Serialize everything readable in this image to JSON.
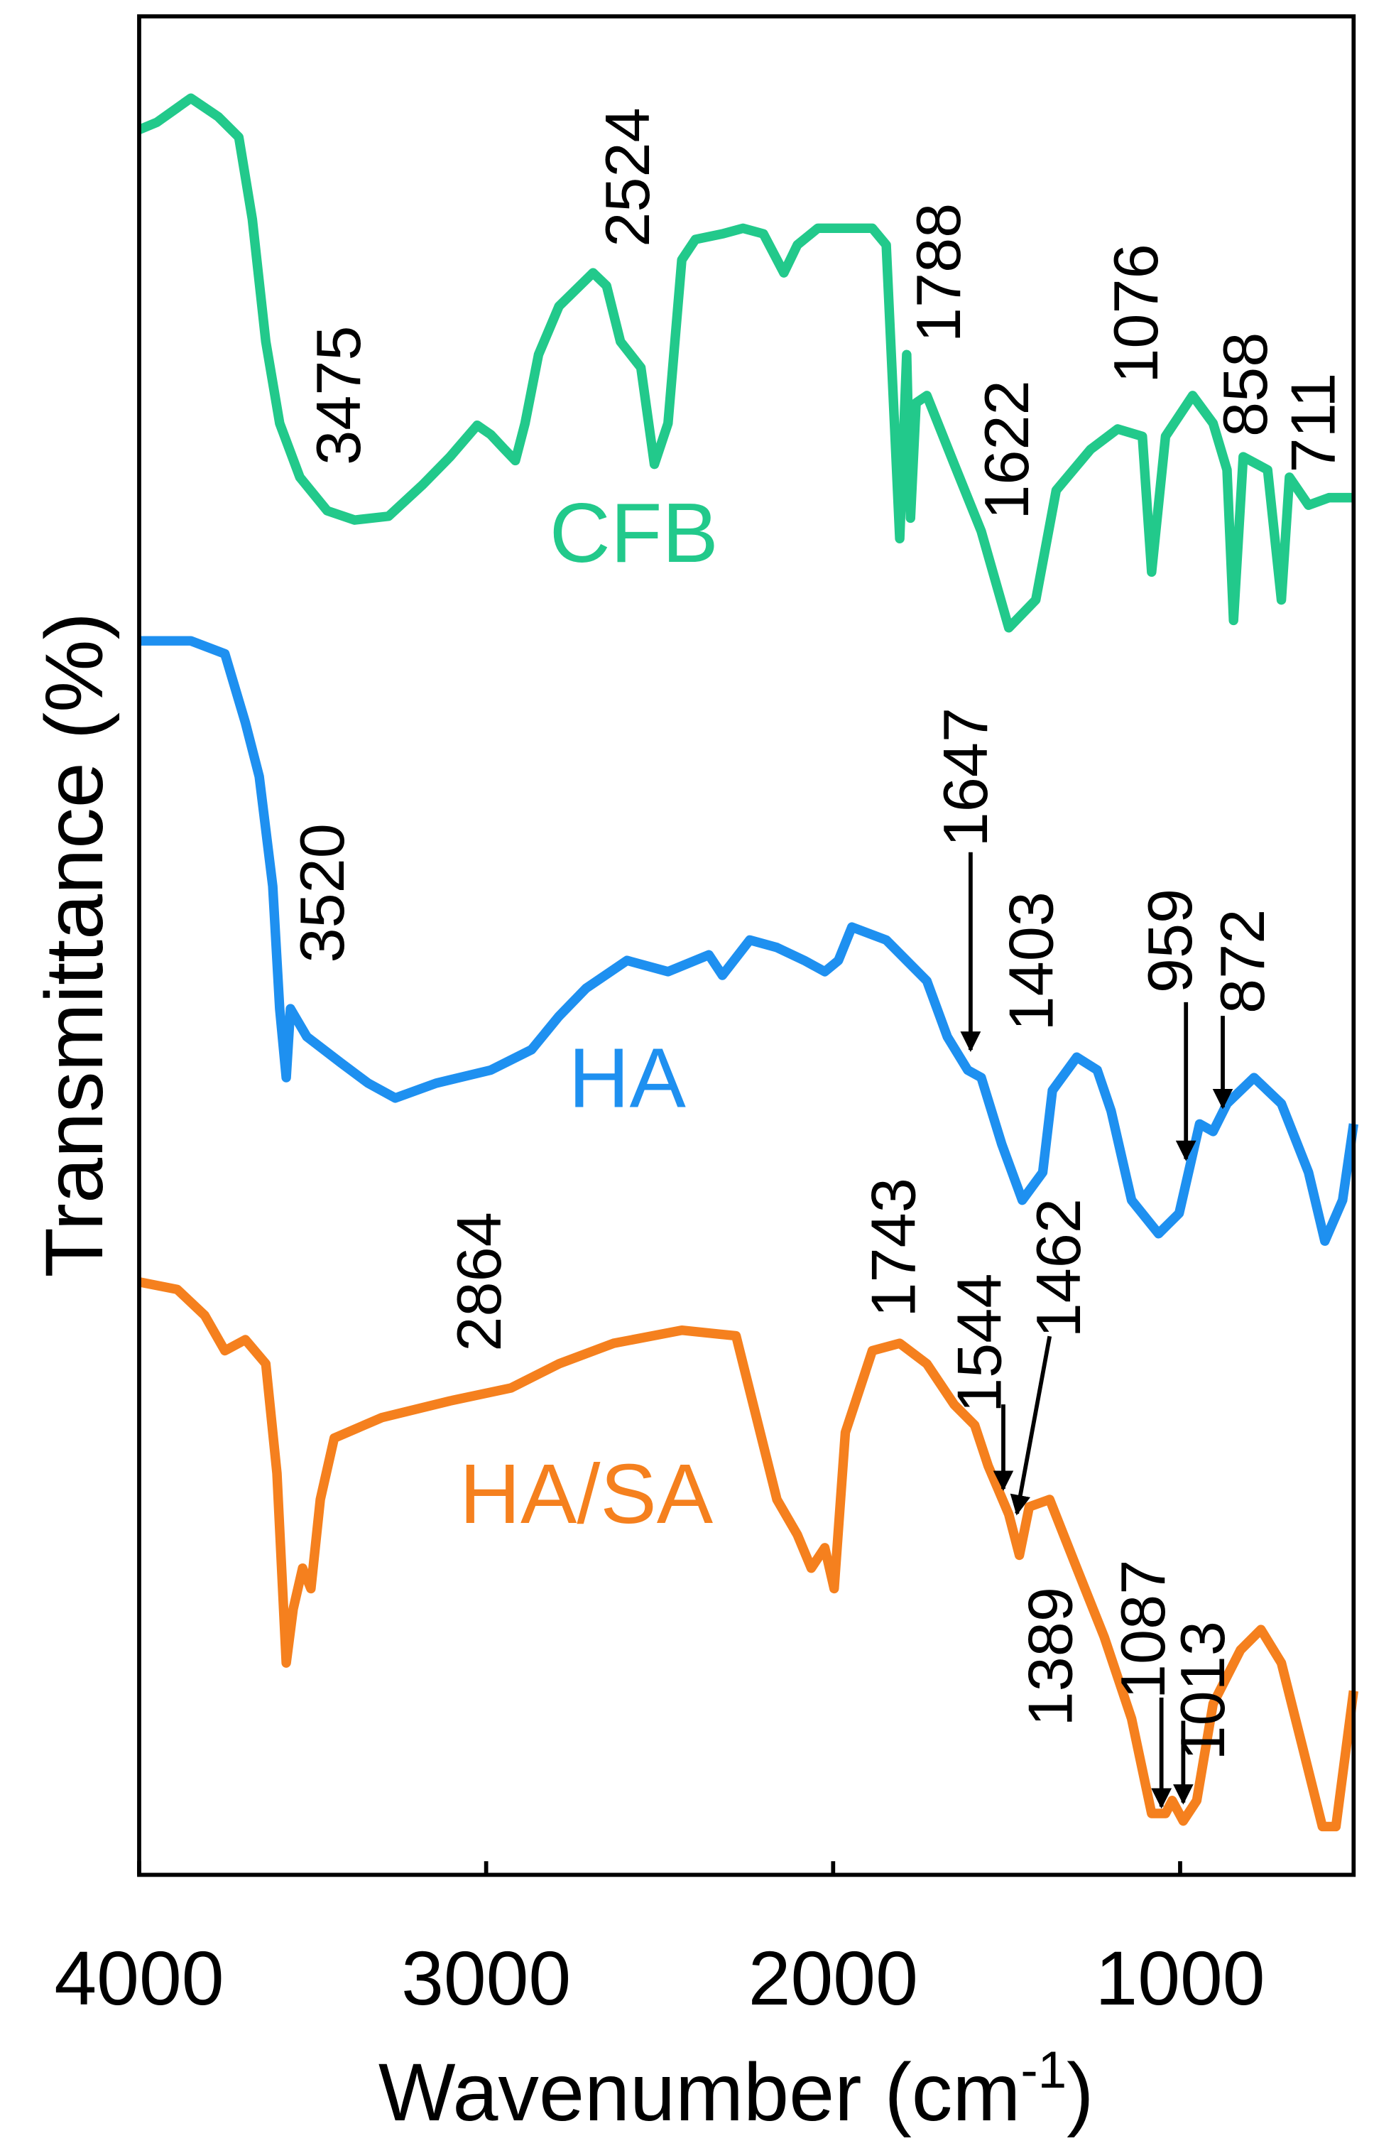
{
  "chart_data": {
    "type": "line",
    "xlabel": [
      "Wavenumber (cm",
      "-1",
      ")"
    ],
    "ylabel": "Transmittance (%)",
    "xlim": [
      4000,
      500
    ],
    "ylim": [
      0,
      100
    ],
    "xticks": [
      4000,
      3000,
      2000,
      1000
    ],
    "series": [
      {
        "name": "CFB",
        "color": "#22c98b",
        "x": [
          4000,
          3949,
          3851,
          3772,
          3713,
          3674,
          3635,
          3595,
          3537,
          3458,
          3379,
          3281,
          3183,
          3104,
          3026,
          2987,
          2947,
          2916,
          2888,
          2849,
          2790,
          2692,
          2653,
          2613,
          2554,
          2515,
          2476,
          2436,
          2397,
          2319,
          2260,
          2201,
          2142,
          2103,
          2044,
          1887,
          1847,
          1808,
          1788,
          1777,
          1761,
          1730,
          1651,
          1573,
          1494,
          1416,
          1357,
          1258,
          1180,
          1109,
          1082,
          1042,
          964,
          905,
          865,
          846,
          818,
          748,
          708,
          685,
          630,
          571,
          500
        ],
        "values": [
          93.9,
          94.3,
          95.6,
          94.6,
          93.5,
          89.1,
          82.5,
          78.1,
          75.2,
          73.4,
          72.9,
          73.1,
          74.8,
          76.3,
          78.0,
          77.5,
          76.7,
          76.1,
          78.1,
          81.8,
          84.4,
          86.2,
          85.5,
          82.5,
          81.1,
          75.9,
          78.1,
          86.9,
          88.0,
          88.3,
          88.6,
          88.3,
          86.2,
          87.7,
          88.6,
          88.6,
          87.7,
          71.9,
          81.8,
          73.0,
          79.2,
          79.6,
          75.9,
          72.3,
          67.1,
          68.6,
          74.5,
          76.7,
          77.8,
          77.4,
          70.1,
          77.4,
          79.6,
          78.1,
          75.6,
          67.5,
          76.3,
          75.6,
          68.6,
          75.2,
          73.7,
          74.1,
          74.1
        ]
      },
      {
        "name": "HA",
        "color": "#1e90f0",
        "x": [
          4000,
          3851,
          3753,
          3694,
          3654,
          3615,
          3595,
          3576,
          3564,
          3517,
          3419,
          3340,
          3262,
          3144,
          2987,
          2869,
          2790,
          2712,
          2594,
          2476,
          2358,
          2319,
          2240,
          2162,
          2083,
          2024,
          1985,
          1946,
          1847,
          1730,
          1671,
          1612,
          1573,
          1514,
          1455,
          1396,
          1368,
          1298,
          1239,
          1199,
          1140,
          1062,
          1003,
          944,
          905,
          865,
          787,
          708,
          630,
          583,
          532,
          500
        ],
        "values": [
          66.4,
          66.4,
          65.7,
          62.0,
          59.1,
          53.2,
          46.6,
          42.9,
          46.6,
          45.1,
          43.7,
          42.6,
          41.8,
          42.6,
          43.3,
          44.4,
          46.2,
          47.7,
          49.2,
          48.6,
          49.5,
          48.4,
          50.3,
          49.9,
          49.2,
          48.6,
          49.2,
          51.0,
          50.3,
          48.1,
          45.1,
          43.3,
          42.9,
          39.3,
          36.3,
          37.8,
          42.2,
          44.0,
          43.3,
          41.1,
          36.3,
          34.5,
          35.6,
          40.4,
          40.0,
          41.5,
          42.9,
          41.5,
          37.8,
          34.1,
          36.3,
          40.4
        ]
      },
      {
        "name": "HA/SA",
        "color": "#f5801e",
        "x": [
          4000,
          3890,
          3811,
          3753,
          3694,
          3635,
          3603,
          3576,
          3556,
          3529,
          3505,
          3478,
          3438,
          3301,
          3104,
          2928,
          2790,
          2633,
          2436,
          2280,
          2221,
          2162,
          2103,
          2063,
          2024,
          1997,
          1965,
          1887,
          1808,
          1730,
          1651,
          1592,
          1553,
          1494,
          1463,
          1435,
          1376,
          1298,
          1219,
          1140,
          1082,
          1042,
          1023,
          991,
          952,
          905,
          826,
          767,
          708,
          649,
          590,
          551,
          500
        ],
        "values": [
          31.9,
          31.5,
          30.1,
          28.2,
          28.8,
          27.5,
          21.6,
          11.4,
          14.3,
          16.5,
          15.4,
          20.2,
          23.5,
          24.6,
          25.5,
          26.2,
          27.5,
          28.6,
          29.3,
          29.0,
          24.6,
          20.2,
          18.3,
          16.5,
          17.6,
          15.4,
          23.8,
          28.2,
          28.6,
          27.5,
          25.3,
          24.2,
          22.0,
          19.4,
          17.2,
          19.8,
          20.2,
          16.5,
          12.8,
          8.4,
          3.3,
          3.3,
          4.0,
          2.9,
          4.0,
          9.2,
          12.1,
          13.2,
          11.4,
          7.0,
          2.6,
          2.6,
          9.9
        ]
      }
    ],
    "annotations": [
      {
        "text": "3475"
      },
      {
        "text": "2524"
      },
      {
        "text": "1788"
      },
      {
        "text": "1622"
      },
      {
        "text": "1076"
      },
      {
        "text": "858"
      },
      {
        "text": "711"
      },
      {
        "text": "3520"
      },
      {
        "text": "1647",
        "arrow": true
      },
      {
        "text": "1403"
      },
      {
        "text": "959",
        "arrow": true
      },
      {
        "text": "872",
        "arrow": true
      },
      {
        "text": "2864"
      },
      {
        "text": "1743"
      },
      {
        "text": "1544",
        "arrow": true
      },
      {
        "text": "1462",
        "arrow": true
      },
      {
        "text": "1389"
      },
      {
        "text": "1087",
        "arrow": true
      },
      {
        "text": "1013",
        "arrow": true
      }
    ]
  }
}
